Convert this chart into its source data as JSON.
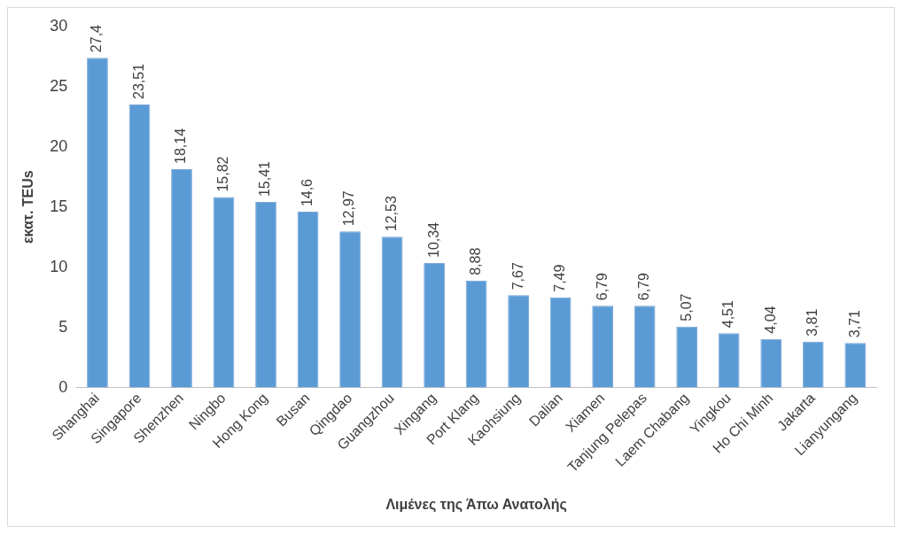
{
  "chart_data": {
    "type": "bar",
    "xlabel": "Λιμένες της Άπω Ανατολής",
    "ylabel": "εκατ. TEUs",
    "categories": [
      "Shanghai",
      "Singapore",
      "Shenzhen",
      "Ningbo",
      "Hong Kong",
      "Busan",
      "Qingdao",
      "Guangzhou",
      "Xingang",
      "Port Klang",
      "Kaohsiung",
      "Dalian",
      "Xiamen",
      "Tanjung Pelepas",
      "Laem Chabang",
      "Yingkou",
      "Ho Chi Minh",
      "Jakarta",
      "Lianyungang"
    ],
    "values": [
      27.4,
      23.51,
      18.14,
      15.82,
      15.41,
      14.6,
      12.97,
      12.53,
      10.34,
      8.88,
      7.67,
      7.49,
      6.79,
      6.79,
      5.07,
      4.51,
      4.04,
      3.81,
      3.71
    ],
    "value_labels": [
      "27,4",
      "23,51",
      "18,14",
      "15,82",
      "15,41",
      "14,6",
      "12,97",
      "12,53",
      "10,34",
      "8,88",
      "7,67",
      "7,49",
      "6,79",
      "6,79",
      "5,07",
      "4,51",
      "4,04",
      "3,81",
      "3,71"
    ],
    "color": "#5b9bd5",
    "ylim": [
      0,
      30
    ],
    "yticks": [
      0,
      5,
      10,
      15,
      20,
      25,
      30
    ],
    "grid": false,
    "legend": false
  }
}
